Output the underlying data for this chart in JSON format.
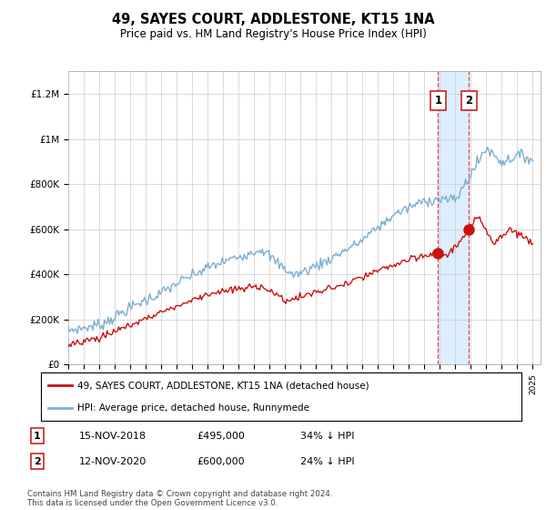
{
  "title": "49, SAYES COURT, ADDLESTONE, KT15 1NA",
  "subtitle": "Price paid vs. HM Land Registry's House Price Index (HPI)",
  "ylabel_ticks": [
    "£0",
    "£200K",
    "£400K",
    "£600K",
    "£800K",
    "£1M",
    "£1.2M"
  ],
  "ytick_values": [
    0,
    200000,
    400000,
    600000,
    800000,
    1000000,
    1200000
  ],
  "ylim": [
    0,
    1300000
  ],
  "xlim_start": 1995.0,
  "xlim_end": 2025.5,
  "hpi_color": "#7bafd4",
  "price_color": "#cc1111",
  "highlight_color": "#ddeeff",
  "sale1_year": 2018.88,
  "sale1_price": 495000,
  "sale1_label": "1",
  "sale2_year": 2020.88,
  "sale2_price": 600000,
  "sale2_label": "2",
  "legend_line1": "49, SAYES COURT, ADDLESTONE, KT15 1NA (detached house)",
  "legend_line2": "HPI: Average price, detached house, Runnymede",
  "table_row1": [
    "1",
    "15-NOV-2018",
    "£495,000",
    "34% ↓ HPI"
  ],
  "table_row2": [
    "2",
    "12-NOV-2020",
    "£600,000",
    "24% ↓ HPI"
  ],
  "footnote": "Contains HM Land Registry data © Crown copyright and database right 2024.\nThis data is licensed under the Open Government Licence v3.0.",
  "background_color": "#ffffff",
  "grid_color": "#cccccc",
  "vline_color": "#dd4444"
}
